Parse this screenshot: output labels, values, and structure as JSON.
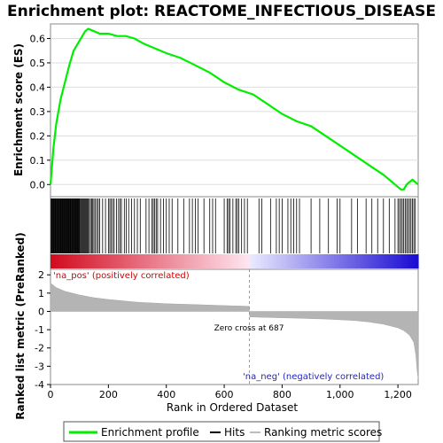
{
  "chart_data": {
    "type": "line",
    "title": "Enrichment plot: REACTOME_INFECTIOUS_DISEASE",
    "xlabel": "Rank in Ordered Dataset",
    "ylabel_top": "Enrichment score (ES)",
    "ylabel_bottom": "Ranked list metric (PreRanked)",
    "xlim": [
      0,
      1270
    ],
    "x_ticks": [
      0,
      200,
      400,
      600,
      800,
      1000,
      1200
    ],
    "x_tick_labels": [
      "0",
      "200",
      "400",
      "600",
      "800",
      "1,000",
      "1,200"
    ],
    "es_ylim": [
      -0.05,
      0.66
    ],
    "es_ticks": [
      0.0,
      0.1,
      0.2,
      0.3,
      0.4,
      0.5,
      0.6
    ],
    "es_tick_labels": [
      "0.0",
      "0.1",
      "0.2",
      "0.3",
      "0.4",
      "0.5",
      "0.6"
    ],
    "metric_ylim": [
      -4,
      2.3
    ],
    "metric_ticks": [
      2,
      1,
      0,
      -1,
      -2,
      -3,
      -4
    ],
    "metric_tick_labels": [
      "2",
      "1",
      "0",
      "-1",
      "-2",
      "-3",
      "-4"
    ],
    "series": [
      {
        "name": "Enrichment profile",
        "color": "#00ee00",
        "x": [
          0,
          10,
          20,
          35,
          50,
          65,
          80,
          95,
          110,
          120,
          130,
          150,
          170,
          200,
          230,
          260,
          290,
          320,
          360,
          400,
          450,
          500,
          550,
          600,
          650,
          700,
          750,
          800,
          850,
          900,
          950,
          1000,
          1050,
          1100,
          1150,
          1190,
          1210,
          1220,
          1230,
          1240,
          1250,
          1260,
          1270
        ],
        "y": [
          0.0,
          0.15,
          0.25,
          0.35,
          0.42,
          0.49,
          0.55,
          0.58,
          0.61,
          0.63,
          0.64,
          0.63,
          0.62,
          0.62,
          0.61,
          0.61,
          0.6,
          0.58,
          0.56,
          0.54,
          0.52,
          0.49,
          0.46,
          0.42,
          0.39,
          0.37,
          0.33,
          0.29,
          0.26,
          0.24,
          0.2,
          0.16,
          0.12,
          0.08,
          0.04,
          0.0,
          -0.02,
          -0.02,
          0.0,
          0.01,
          0.02,
          0.01,
          0.0
        ]
      }
    ],
    "hits": [
      2,
      4,
      6,
      8,
      10,
      12,
      14,
      16,
      18,
      20,
      22,
      24,
      26,
      28,
      30,
      32,
      34,
      36,
      38,
      40,
      42,
      44,
      46,
      48,
      50,
      52,
      54,
      56,
      58,
      60,
      62,
      64,
      66,
      68,
      70,
      72,
      74,
      76,
      78,
      80,
      82,
      84,
      86,
      88,
      90,
      92,
      94,
      96,
      98,
      100,
      103,
      106,
      109,
      112,
      115,
      118,
      121,
      124,
      127,
      130,
      134,
      138,
      142,
      146,
      150,
      155,
      160,
      165,
      170,
      180,
      190,
      200,
      205,
      210,
      215,
      220,
      228,
      235,
      240,
      245,
      255,
      262,
      270,
      280,
      290,
      300,
      310,
      330,
      340,
      350,
      355,
      360,
      365,
      370,
      380,
      390,
      400,
      410,
      420,
      440,
      460,
      480,
      490,
      500,
      510,
      530,
      550,
      560,
      570,
      600,
      610,
      615,
      620,
      630,
      640,
      645,
      650,
      660,
      670,
      680,
      720,
      730,
      760,
      780,
      790,
      800,
      820,
      830,
      840,
      850,
      860,
      900,
      930,
      960,
      990,
      1000,
      1040,
      1060,
      1090,
      1110,
      1130,
      1150,
      1170,
      1190,
      1200,
      1205,
      1210,
      1215,
      1220,
      1225,
      1230,
      1235,
      1240,
      1245,
      1250,
      1255,
      1260
    ],
    "metric_curve": {
      "x": [
        0,
        20,
        50,
        100,
        150,
        200,
        300,
        400,
        500,
        600,
        686,
        688,
        750,
        850,
        950,
        1050,
        1100,
        1150,
        1200,
        1220,
        1240,
        1255,
        1262,
        1266,
        1270
      ],
      "y": [
        1.55,
        1.3,
        1.1,
        0.9,
        0.75,
        0.65,
        0.5,
        0.42,
        0.37,
        0.32,
        0.28,
        -0.3,
        -0.33,
        -0.37,
        -0.42,
        -0.5,
        -0.58,
        -0.7,
        -0.9,
        -1.05,
        -1.3,
        -1.7,
        -2.4,
        -3.2,
        -3.7
      ]
    },
    "zero_cross": 687,
    "annotations": {
      "pos": "'na_pos' (positively correlated)",
      "neg": "'na_neg' (negatively correlated)",
      "zero": "Zero cross at 687"
    },
    "legend": {
      "placement": "bottom",
      "items": [
        {
          "label": "Enrichment profile",
          "color": "#00ee00",
          "kind": "thick-line"
        },
        {
          "label": "Hits",
          "color": "#000000",
          "kind": "line"
        },
        {
          "label": "Ranking metric scores",
          "color": "#bbbbbb",
          "kind": "line"
        }
      ]
    }
  }
}
